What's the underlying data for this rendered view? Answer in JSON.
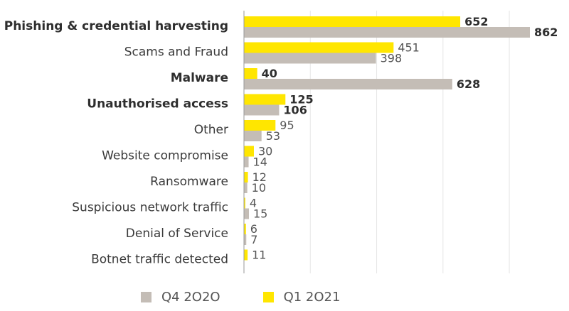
{
  "chart_data": {
    "type": "bar",
    "orientation": "horizontal",
    "categories": [
      "Phishing & credential harvesting",
      "Scams and Fraud",
      "Malware",
      "Unauthorised access",
      "Other",
      "Website compromise",
      "Ransomware",
      "Suspicious network traffic",
      "Denial of Service",
      "Botnet traffic detected"
    ],
    "bold_categories": [
      "Phishing & credential harvesting",
      "Malware",
      "Unauthorised access"
    ],
    "series": [
      {
        "name": "Q1 2O21",
        "color": "#ffe600",
        "values": [
          652,
          451,
          40,
          125,
          95,
          30,
          12,
          4,
          6,
          11
        ]
      },
      {
        "name": "Q4 2O2O",
        "color": "#c4bdb6",
        "values": [
          862,
          398,
          628,
          106,
          53,
          14,
          10,
          15,
          7,
          null
        ]
      }
    ],
    "legend_order": [
      "Q4 2O2O",
      "Q1 2O21"
    ],
    "xlim": [
      0,
      900
    ],
    "grid": true,
    "legend_position": "bottom"
  }
}
